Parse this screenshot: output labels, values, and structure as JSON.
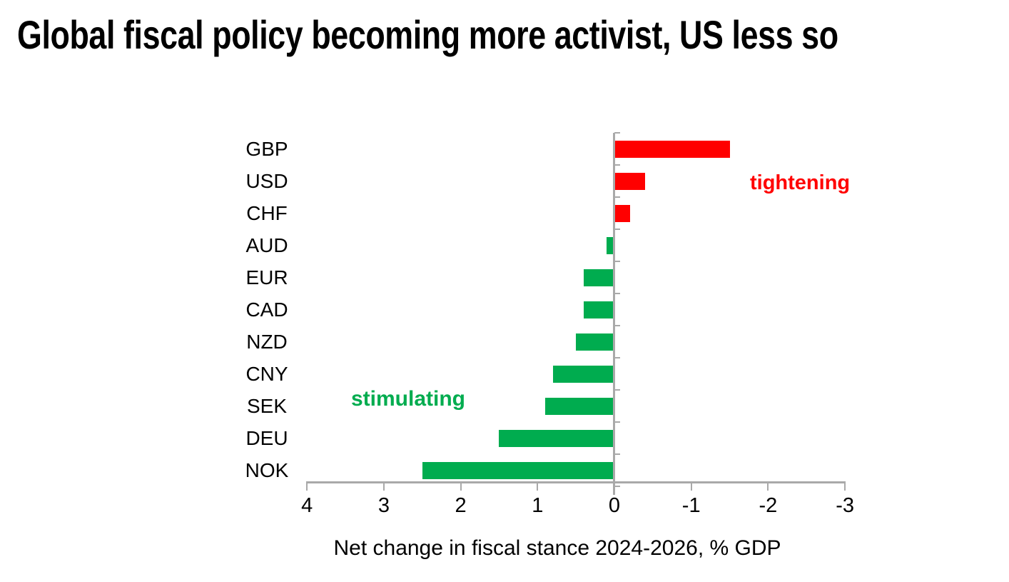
{
  "title": "Global fiscal policy becoming more activist, US less so",
  "annotations": {
    "tightening": {
      "label": "tightening",
      "color": "#ff0000"
    },
    "stimulating": {
      "label": "stimulating",
      "color": "#00ac4f"
    }
  },
  "colors": {
    "bar_positive": "#00ac4f",
    "bar_negative": "#ff0000",
    "axis": "#a9a9a9",
    "text": "#000000"
  },
  "chart_data": {
    "type": "bar",
    "orientation": "horizontal",
    "title": "Global fiscal policy becoming more activist, US less so",
    "xlabel": "Net change in fiscal stance 2024-2026, % GDP",
    "categories": [
      "GBP",
      "USD",
      "CHF",
      "AUD",
      "EUR",
      "CAD",
      "NZD",
      "CNY",
      "SEK",
      "DEU",
      "NOK"
    ],
    "values": [
      -1.5,
      -0.4,
      -0.2,
      0.1,
      0.4,
      0.4,
      0.5,
      0.8,
      0.9,
      1.5,
      2.5
    ],
    "x_ticks": [
      4,
      3,
      2,
      1,
      0,
      -1,
      -2,
      -3
    ],
    "xlim": [
      4,
      -3
    ],
    "x_axis_reversed": true,
    "grid": false,
    "legend": "none",
    "positive_meaning": "stimulating",
    "negative_meaning": "tightening",
    "bar_color_positive": "#00ac4f",
    "bar_color_negative": "#ff0000"
  }
}
